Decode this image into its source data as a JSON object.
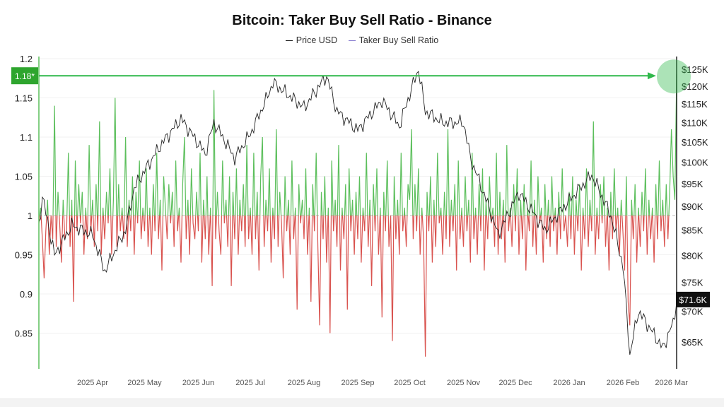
{
  "chart_data": {
    "type": "line",
    "title": "Bitcoin: Taker Buy Sell Ratio - Binance",
    "legend": [
      "Price USD",
      "Taker Buy Sell Ratio"
    ],
    "legend_placement": "top-center",
    "colors": {
      "price": "#222222",
      "ratio_above": "#5cbf5c",
      "ratio_below": "#d9534f",
      "highlight": "#2fb84a",
      "baseline": "#bbbbbb"
    },
    "x_start": "2025-03-01",
    "x_end": "2026-03-04",
    "x_ticks": [
      "2025 Apr",
      "2025 May",
      "2025 Jun",
      "2025 Jul",
      "2025 Aug",
      "2025 Sep",
      "2025 Oct",
      "2025 Nov",
      "2025 Dec",
      "2026 Jan",
      "2026 Feb",
      "2026 Mar"
    ],
    "x_tick_dates": [
      "2025-04-01",
      "2025-05-01",
      "2025-06-01",
      "2025-07-01",
      "2025-08-01",
      "2025-09-01",
      "2025-10-01",
      "2025-11-01",
      "2025-12-01",
      "2026-01-01",
      "2026-02-01",
      "2026-03-01"
    ],
    "y_left": {
      "range": [
        0.81,
        1.2
      ],
      "ticks": [
        "1.2",
        "1.15",
        "1.1",
        "1.05",
        "1",
        "0.95",
        "0.9",
        "0.85"
      ],
      "tick_values": [
        1.2,
        1.15,
        1.1,
        1.05,
        1,
        0.95,
        0.9,
        0.85
      ],
      "baseline": 1
    },
    "y_right": {
      "scale": "log",
      "range": [
        60000,
        130000
      ],
      "ticks": [
        "$125K",
        "$120K",
        "$115K",
        "$110K",
        "$105K",
        "$100K",
        "$95K",
        "$90K",
        "$85K",
        "$80K",
        "$75K",
        "$70K",
        "$65K"
      ],
      "tick_values": [
        125000,
        120000,
        115000,
        110000,
        105000,
        100000,
        95000,
        90000,
        85000,
        80000,
        75000,
        70000,
        65000
      ]
    },
    "grid": true,
    "annotations": {
      "ratio_marker": "1.18*",
      "ratio_marker_value": 1.18,
      "price_marker": "$71.6K",
      "price_marker_value": 71600
    },
    "price_series": [
      [
        "2025-03-01",
        86000
      ],
      [
        "2025-03-03",
        92000
      ],
      [
        "2025-03-10",
        80000
      ],
      [
        "2025-03-20",
        86000
      ],
      [
        "2025-04-01",
        84000
      ],
      [
        "2025-04-08",
        77000
      ],
      [
        "2025-04-20",
        85000
      ],
      [
        "2025-04-25",
        94000
      ],
      [
        "2025-05-10",
        104000
      ],
      [
        "2025-05-22",
        111000
      ],
      [
        "2025-06-05",
        102000
      ],
      [
        "2025-06-10",
        110000
      ],
      [
        "2025-06-22",
        101000
      ],
      [
        "2025-07-01",
        107000
      ],
      [
        "2025-07-10",
        116000
      ],
      [
        "2025-07-14",
        121000
      ],
      [
        "2025-08-01",
        114000
      ],
      [
        "2025-08-14",
        123000
      ],
      [
        "2025-08-20",
        113000
      ],
      [
        "2025-09-01",
        108000
      ],
      [
        "2025-09-15",
        116000
      ],
      [
        "2025-09-25",
        109000
      ],
      [
        "2025-10-06",
        125000
      ],
      [
        "2025-10-10",
        113000
      ],
      [
        "2025-10-20",
        110000
      ],
      [
        "2025-11-01",
        110000
      ],
      [
        "2025-11-05",
        101000
      ],
      [
        "2025-11-21",
        84000
      ],
      [
        "2025-12-03",
        93000
      ],
      [
        "2025-12-18",
        85000
      ],
      [
        "2026-01-05",
        93000
      ],
      [
        "2026-01-14",
        97000
      ],
      [
        "2026-01-25",
        88000
      ],
      [
        "2026-02-01",
        78000
      ],
      [
        "2026-02-05",
        63000
      ],
      [
        "2026-02-10",
        70000
      ],
      [
        "2026-02-24",
        64000
      ],
      [
        "2026-03-02",
        68000
      ],
      [
        "2026-03-04",
        71600
      ]
    ],
    "ratio_daily": [
      0.99,
      1.01,
      0.97,
      0.92,
      0.98,
      1.02,
      0.95,
      1.0,
      0.97,
      1.14,
      0.96,
      1.03,
      0.99,
      0.94,
      1.02,
      0.97,
      0.98,
      1.08,
      0.96,
      1.02,
      0.89,
      1.07,
      0.98,
      1.04,
      0.99,
      1.03,
      0.95,
      1.01,
      0.97,
      1.09,
      0.98,
      1.02,
      0.96,
      1.04,
      0.98,
      1.12,
      0.95,
      1.01,
      0.97,
      1.03,
      0.99,
      1.06,
      0.95,
      1.02,
      1.15,
      0.96,
      1.04,
      0.98,
      1.01,
      0.97,
      1.1,
      0.96,
      1.02,
      0.98,
      1.05,
      0.95,
      1.03,
      0.99,
      1.07,
      0.97,
      1.01,
      0.98,
      1.06,
      0.96,
      1.01,
      0.95,
      1.04,
      0.98,
      1.08,
      0.97,
      1.02,
      0.93,
      1.05,
      1.01,
      0.97,
      1.04,
      0.99,
      1.03,
      0.96,
      1.07,
      0.98,
      1.01,
      0.94,
      1.04,
      1.1,
      0.97,
      1.02,
      0.95,
      1.06,
      0.99,
      0.97,
      1.03,
      0.98,
      1.08,
      0.94,
      1.02,
      0.97,
      1.05,
      0.95,
      1.01,
      0.91,
      1.16,
      0.97,
      1.03,
      0.98,
      0.95,
      1.07,
      0.99,
      1.02,
      0.96,
      1.05,
      0.91,
      1.03,
      0.97,
      1.06,
      0.95,
      1.02,
      0.98,
      1.04,
      0.96,
      1.09,
      0.97,
      1.01,
      0.95,
      1.08,
      0.97,
      1.03,
      0.93,
      1.05,
      1.1,
      0.96,
      1.02,
      0.98,
      1.06,
      0.94,
      1.01,
      0.97,
      1.11,
      0.96,
      1.03,
      0.99,
      0.92,
      1.05,
      0.98,
      1.02,
      0.95,
      1.07,
      0.97,
      1.01,
      0.88,
      1.04,
      0.99,
      1.02,
      0.97,
      1.06,
      0.95,
      1.01,
      0.89,
      1.04,
      0.98,
      1.08,
      0.96,
      0.86,
      1.03,
      0.97,
      1.05,
      0.94,
      1.01,
      0.85,
      1.07,
      0.98,
      1.02,
      0.96,
      1.09,
      0.93,
      1.01,
      0.97,
      1.04,
      0.88,
      1.06,
      0.98,
      1.02,
      0.95,
      1.03,
      0.97,
      1.05,
      0.94,
      1.01,
      0.98,
      1.08,
      0.96,
      1.02,
      0.91,
      1.04,
      0.98,
      1.06,
      0.95,
      1.01,
      0.87,
      1.03,
      0.98,
      1.07,
      0.96,
      1.0,
      0.84,
      1.05,
      0.97,
      1.02,
      0.95,
      1.08,
      0.98,
      1.01,
      0.96,
      1.04,
      1.02,
      1.11,
      0.97,
      1.04,
      0.98,
      1.06,
      0.95,
      1.01,
      0.97,
      0.82,
      1.03,
      0.98,
      1.05,
      0.94,
      1.02,
      0.96,
      1.08,
      0.99,
      1.01,
      0.95,
      1.03,
      0.97,
      1.11,
      0.96,
      1.02,
      0.98,
      1.04,
      0.93,
      1.07,
      0.97,
      1.01,
      0.96,
      1.05,
      0.98,
      1.02,
      0.94,
      1.08,
      0.97,
      1.01,
      0.95,
      1.04,
      0.98,
      1.06,
      0.93,
      1.02,
      0.97,
      1.05,
      0.99,
      1.01,
      0.96,
      1.08,
      0.95,
      1.03,
      0.97,
      1.02,
      0.94,
      1.09,
      0.98,
      1.01,
      0.96,
      1.04,
      0.98,
      1.06,
      0.95,
      1.02,
      0.97,
      1.04,
      0.93,
      1.01,
      0.98,
      1.07,
      0.96,
      1.02,
      0.95,
      1.05,
      0.99,
      1.01,
      0.94,
      1.04,
      0.97,
      1.02,
      0.96,
      1.05,
      0.98,
      1.01,
      0.95,
      1.03,
      0.97,
      1.06,
      0.98,
      1.0,
      0.96,
      1.03,
      0.97,
      1.05,
      0.95,
      1.02,
      0.98,
      1.04,
      0.93,
      1.01,
      0.97,
      1.06,
      0.96,
      1.02,
      0.98,
      1.12,
      0.95,
      1.01,
      0.97,
      1.04,
      0.99,
      1.05,
      0.96,
      1.01,
      0.93,
      1.03,
      0.97,
      1.06,
      0.98,
      1.01,
      0.95,
      1.02,
      0.98,
      0.93,
      1.05,
      0.89,
      0.86,
      1.02,
      0.97,
      1.04,
      0.94,
      1.01,
      0.96,
      1.03,
      0.98,
      1.06,
      0.95,
      1.02,
      0.97,
      1.01,
      0.94,
      1.04,
      0.97,
      1.07,
      0.98,
      1.02,
      0.96,
      1.04,
      0.97,
      1.03,
      1.11,
      1.05,
      1.02,
      1.18
    ]
  }
}
